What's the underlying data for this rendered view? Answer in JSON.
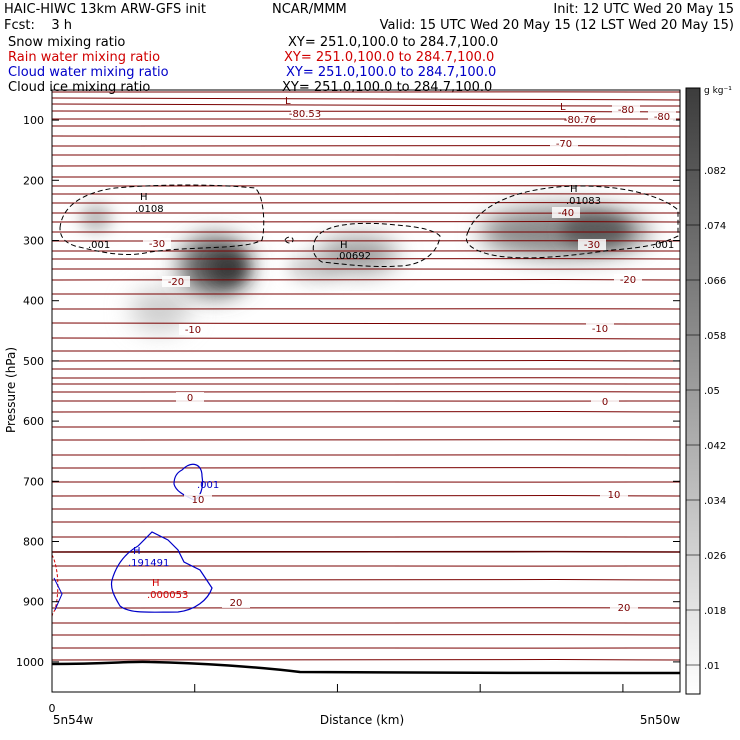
{
  "header": {
    "left_line1": "HAIC-HIWC 13km ARW-GFS init",
    "center_line1": "NCAR/MMM",
    "right_line1": "Init: 12 UTC Wed 20 May 15",
    "left_line2": "Fcst:    3 h",
    "right_line2": "Valid: 15 UTC Wed 20 May 15 (12 LST Wed 20 May 15)",
    "fields": [
      {
        "name": "Snow mixing ratio",
        "xy": "XY= 251.0,100.0 to 284.7,100.0",
        "color": "#000000"
      },
      {
        "name": "Rain water mixing ratio",
        "xy": "XY= 251.0,100.0 to 284.7,100.0",
        "color": "#d00000"
      },
      {
        "name": "Cloud water mixing ratio",
        "xy": "XY= 251.0,100.0 to 284.7,100.0",
        "color": "#0000c8"
      },
      {
        "name": "Cloud ice mixing ratio",
        "xy": "XY= 251.0,100.0 to 284.7,100.0",
        "color": "#000000"
      }
    ]
  },
  "chart_data": {
    "type": "contour",
    "ylabel": "Pressure (hPa)",
    "xlabel": "Distance (km)",
    "x_start_label": "0",
    "x_left_label": "5n54w",
    "x_right_label": "5n50w",
    "yticks": [
      100,
      200,
      300,
      400,
      500,
      600,
      700,
      800,
      900,
      1000
    ],
    "ylim": [
      50,
      1050
    ],
    "colorbar": {
      "unit": "g kg⁻¹",
      "tick_labels": [
        ".082",
        ".074",
        ".066",
        ".058",
        ".05",
        ".042",
        ".034",
        ".026",
        ".018",
        ".01"
      ]
    },
    "temperature_labels": [
      {
        "text": "-80.53"
      },
      {
        "text": "-80.76"
      },
      {
        "text": "-80"
      },
      {
        "text": "-80"
      },
      {
        "text": "-70"
      },
      {
        "text": "-40"
      },
      {
        "text": "-30"
      },
      {
        "text": "-30"
      },
      {
        "text": "-20"
      },
      {
        "text": "-20"
      },
      {
        "text": "-10"
      },
      {
        "text": "-10"
      },
      {
        "text": "0"
      },
      {
        "text": "0"
      },
      {
        "text": "10"
      },
      {
        "text": "10"
      },
      {
        "text": "20"
      },
      {
        "text": "20"
      }
    ],
    "low_labels": [
      "L",
      "L"
    ],
    "snow_maxima": [
      {
        "h": "H",
        "value": ".0108"
      },
      {
        "h": "H",
        "value": ".00692"
      },
      {
        "h": "H",
        "value": ".01083"
      }
    ],
    "snow_contour_labels": [
      ".001",
      ".001"
    ],
    "cloud_water": [
      {
        "h": "H",
        "value": ".191491"
      },
      {
        "h": "",
        "value": ".001"
      }
    ],
    "rain_maximum": {
      "h": "H",
      "value": ".000053"
    }
  }
}
